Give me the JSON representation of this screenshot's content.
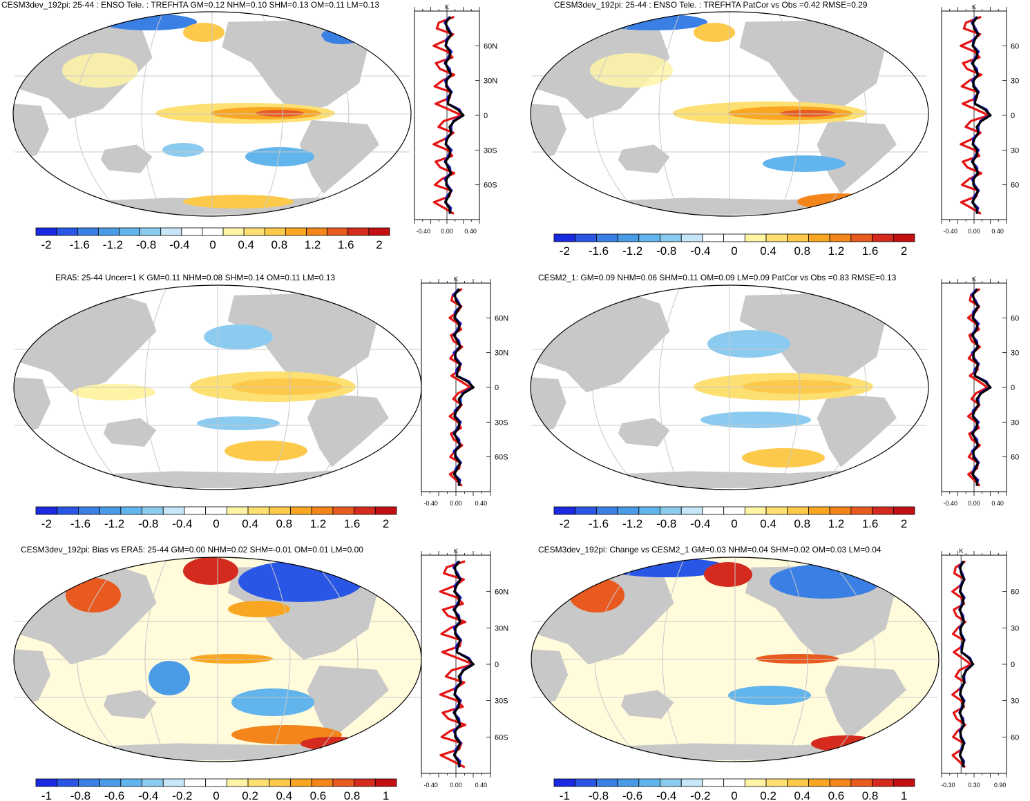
{
  "colors": {
    "scale": [
      "#1a2ae0",
      "#2a56e6",
      "#3a7fe4",
      "#4a9be6",
      "#62b4ec",
      "#8ccbf0",
      "#c7e6f7",
      "#ffffff",
      "#ffffff",
      "#fff4a6",
      "#fde071",
      "#fcc94a",
      "#f9a722",
      "#f3851b",
      "#e85a1f",
      "#d42b1e",
      "#c40f12"
    ],
    "land": "#c8c8c8",
    "ocean": "#ffffff",
    "grid": "#c8c8c8",
    "model_line": "#1f1fd6",
    "obs_line": "#000000",
    "diff_line": "#e51414"
  },
  "panels": [
    {
      "id": "model",
      "title": "CESM3dev_192pi: 25-44 : ENSO Tele. : TREFHTA GM=0.12 NHM=0.10 SHM=0.13 OM=0.11 LM=0.13",
      "colorbar_labels": [
        "-2",
        "-1.6",
        "-1.2",
        "-0.8",
        "-0.4",
        "0",
        "0.4",
        "0.8",
        "1.2",
        "1.6",
        "2"
      ],
      "zonal_mean": {
        "unit": "K",
        "lat_labels": [
          "60N",
          "30N",
          "0",
          "30S",
          "60S"
        ],
        "x_labels": [
          "-0.40",
          "0.00",
          "0.40"
        ]
      }
    },
    {
      "id": "model-patcor",
      "title": "CESM3dev_192pi: 25-44 : ENSO Tele. : TREFHTA PatCor vs Obs =0.42 RMSE=0.29",
      "colorbar_labels": [
        "-2",
        "-1.6",
        "-1.2",
        "-0.8",
        "-0.4",
        "0",
        "0.4",
        "0.8",
        "1.2",
        "1.6",
        "2"
      ],
      "zonal_mean": {
        "unit": "K",
        "lat_labels": [
          "60",
          "30",
          "0",
          "30",
          "60"
        ],
        "x_labels": [
          "-0.40",
          "0.00",
          "0.40"
        ]
      }
    },
    {
      "id": "obs",
      "title": "ERA5: 25-44 Uncer=1 K GM=0.11 NHM=0.08 SHM=0.14 OM=0.11 LM=0.13",
      "colorbar_labels": [
        "-2",
        "-1.6",
        "-1.2",
        "-0.8",
        "-0.4",
        "0",
        "0.4",
        "0.8",
        "1.2",
        "1.6",
        "2"
      ],
      "zonal_mean": {
        "unit": "K",
        "lat_labels": [
          "60N",
          "30N",
          "0",
          "30S",
          "60S"
        ],
        "x_labels": [
          "-0.40",
          "0.00",
          "0.40"
        ]
      }
    },
    {
      "id": "baseline",
      "title": "CESM2_1: GM=0.09 NHM=0.06 SHM=0.11 OM=0.09 LM=0.09 PatCor vs Obs =0.83 RMSE=0.13",
      "colorbar_labels": [
        "-2",
        "-1.6",
        "-1.2",
        "-0.8",
        "-0.4",
        "0",
        "0.4",
        "0.8",
        "1.2",
        "1.6",
        "2"
      ],
      "zonal_mean": {
        "unit": "K",
        "lat_labels": [
          "60",
          "30",
          "0",
          "30",
          "60"
        ],
        "x_labels": [
          "-0.40",
          "0.00",
          "0.40"
        ]
      }
    },
    {
      "id": "bias",
      "title": "CESM3dev_192pi: Bias vs ERA5: 25-44 GM=0.00 NHM=0.02 SHM=-0.01 OM=0.01 LM=0.00",
      "colorbar_labels": [
        "-1",
        "-0.8",
        "-0.6",
        "-0.4",
        "-0.2",
        "0",
        "0.2",
        "0.4",
        "0.6",
        "0.8",
        "1"
      ],
      "zonal_mean": {
        "unit": "K",
        "lat_labels": [
          "60N",
          "30N",
          "0",
          "30S",
          "60S"
        ],
        "x_labels": [
          "-0.40",
          "0.00",
          "0.40"
        ]
      }
    },
    {
      "id": "change",
      "title": "CESM3dev_192pi: Change vs CESM2_1 GM=0.03 NHM=0.04 SHM=0.02 OM=0.03 LM=0.04",
      "colorbar_labels": [
        "-1",
        "-0.8",
        "-0.6",
        "-0.4",
        "-0.2",
        "0",
        "0.2",
        "0.4",
        "0.6",
        "0.8",
        "1"
      ],
      "zonal_mean": {
        "unit": "K",
        "lat_labels": [
          "60",
          "30",
          "0",
          "30",
          "60"
        ],
        "x_labels": [
          "-0.30",
          "0.30",
          "0.90"
        ]
      }
    }
  ]
}
